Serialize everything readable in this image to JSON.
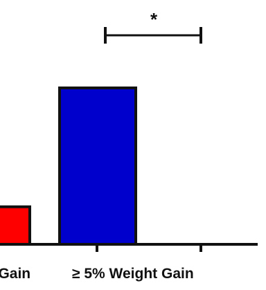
{
  "chart_data": {
    "type": "bar",
    "title": "",
    "xlabel": "",
    "ylabel": "",
    "categories": [
      "Weight Gain",
      "≥ 5% Weight Gain"
    ],
    "values": [
      0.24,
      1.0
    ],
    "colors": [
      "#ff0000",
      "#0000cc"
    ],
    "edge_color": "#111111",
    "ylim": [
      0,
      1.05
    ],
    "significance": {
      "label": "*",
      "between": [
        "≥ 5% Weight Gain",
        "next group (cropped)"
      ]
    },
    "grid": false,
    "legend": "none"
  }
}
